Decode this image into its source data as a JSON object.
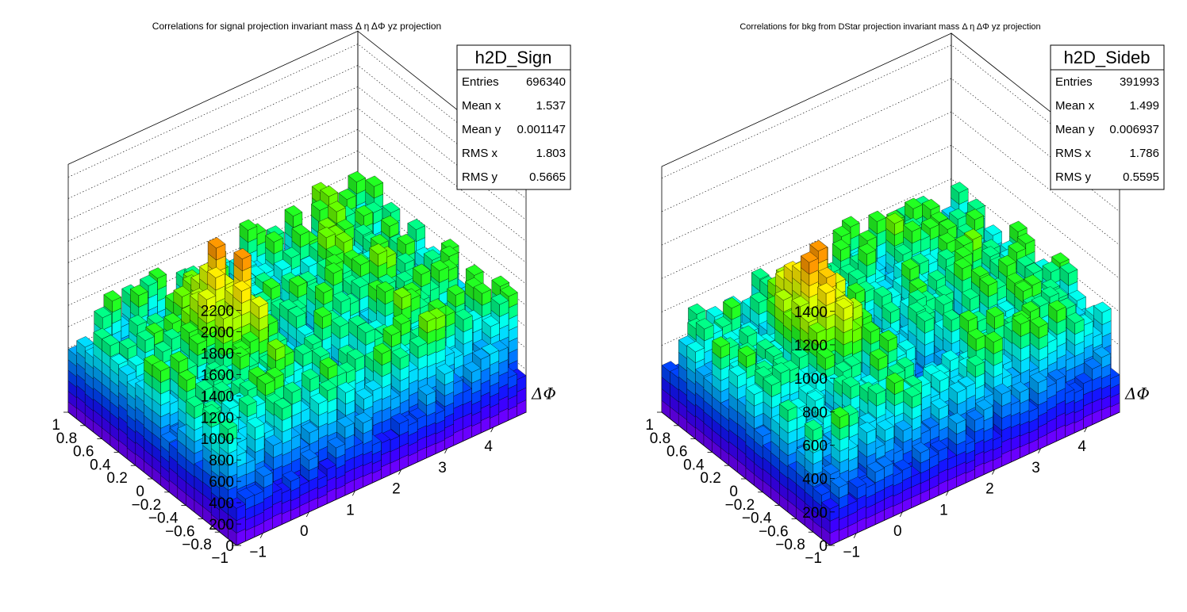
{
  "chart_data": [
    {
      "type": "lego3d",
      "title": "Correlations for signal projection  invariant mass  Δ η ΔΦ yz projection",
      "xlabel": "ΔΦ",
      "ylabel": "",
      "zlabel": "",
      "xlim": [
        -1.571,
        4.712
      ],
      "ylim": [
        -1.0,
        1.0
      ],
      "zlim": [
        0,
        2200
      ],
      "x_ticks": [
        "−1",
        "0",
        "1",
        "2",
        "3",
        "4"
      ],
      "y_ticks": [
        "−1",
        "−0.8",
        "−0.6",
        "−0.4",
        "−0.2",
        "0",
        "0.2",
        "0.4",
        "0.6",
        "0.8",
        "1"
      ],
      "z_ticks": [
        "0",
        "200",
        "400",
        "600",
        "800",
        "1000",
        "1200",
        "1400",
        "1600",
        "1800",
        "2000",
        "2200"
      ],
      "nx": 32,
      "ny": 20,
      "baseline": 750,
      "noise": 330,
      "peak": {
        "x_bin": 8,
        "y_bin": 10,
        "amplitude": 900,
        "sx": 1.6,
        "sy": 2.8
      },
      "ridge": {
        "x_bin": 24,
        "amplitude": 150,
        "sx": 4.0
      },
      "seed": 7,
      "palette": [
        "#6a00ff",
        "#3c00ff",
        "#1515ff",
        "#0044ff",
        "#0077ff",
        "#00aaff",
        "#00ddff",
        "#00ffee",
        "#00ff88",
        "#22ff22",
        "#66ff00",
        "#aaff00",
        "#ddff00",
        "#ffee00",
        "#ffcc00",
        "#ff9900",
        "#ff6600",
        "#ff3300",
        "#ee0000"
      ],
      "stats": {
        "name": "h2D_Sign",
        "rows": [
          {
            "label": "Entries",
            "value": "696340"
          },
          {
            "label": "Mean x",
            "value": "1.537"
          },
          {
            "label": "Mean y",
            "value": "0.001147"
          },
          {
            "label": "RMS x",
            "value": "1.803"
          },
          {
            "label": "RMS y",
            "value": "0.5665"
          }
        ]
      }
    },
    {
      "type": "lego3d",
      "title": "Correlations for bkg from DStar projection  invariant mass  Δ η ΔΦ yz projection",
      "xlabel": "ΔΦ",
      "ylabel": "",
      "zlabel": "",
      "xlim": [
        -1.571,
        4.712
      ],
      "ylim": [
        -1.0,
        1.0
      ],
      "zlim": [
        0,
        1400
      ],
      "x_ticks": [
        "−1",
        "0",
        "1",
        "2",
        "3",
        "4"
      ],
      "y_ticks": [
        "−1",
        "−0.8",
        "−0.6",
        "−0.4",
        "−0.2",
        "0",
        "0.2",
        "0.4",
        "0.6",
        "0.8",
        "1"
      ],
      "z_ticks": [
        "0",
        "200",
        "400",
        "600",
        "800",
        "1000",
        "1200",
        "1400"
      ],
      "nx": 32,
      "ny": 20,
      "baseline": 470,
      "noise": 210,
      "peak": {
        "x_bin": 8,
        "y_bin": 10,
        "amplitude": 560,
        "sx": 1.6,
        "sy": 2.8
      },
      "ridge": {
        "x_bin": 24,
        "amplitude": 90,
        "sx": 4.0
      },
      "seed": 19,
      "palette": [
        "#6a00ff",
        "#3c00ff",
        "#1515ff",
        "#0044ff",
        "#0077ff",
        "#00aaff",
        "#00ddff",
        "#00ffee",
        "#00ff88",
        "#22ff22",
        "#66ff00",
        "#aaff00",
        "#ddff00",
        "#ffee00",
        "#ffcc00",
        "#ff9900",
        "#ff6600",
        "#ff3300",
        "#ee0000"
      ],
      "stats": {
        "name": "h2D_Sideb",
        "rows": [
          {
            "label": "Entries",
            "value": "391993"
          },
          {
            "label": "Mean x",
            "value": "1.499"
          },
          {
            "label": "Mean y",
            "value": "0.006937"
          },
          {
            "label": "RMS x",
            "value": "1.786"
          },
          {
            "label": "RMS y",
            "value": "0.5595"
          }
        ]
      }
    }
  ]
}
